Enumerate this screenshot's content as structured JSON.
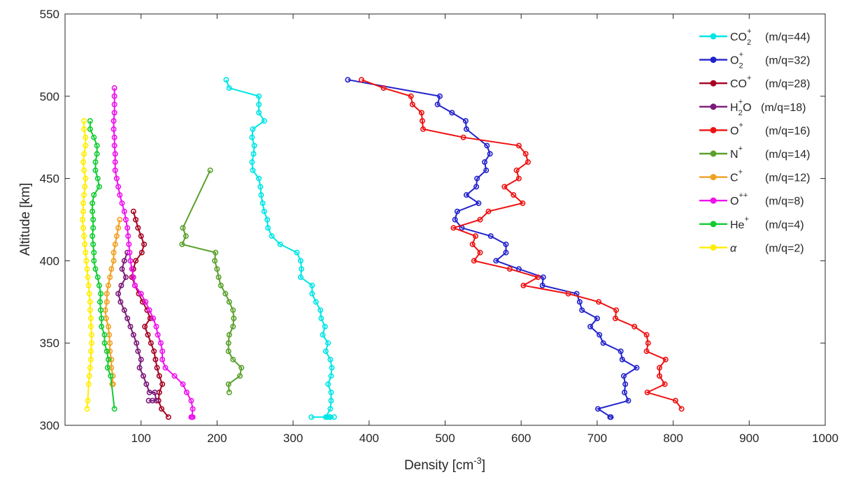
{
  "chart_data": {
    "type": "line",
    "xlabel": "Density [cm",
    "xlabel_sup": "-3",
    "xlabel_suffix": "]",
    "ylabel": "Altitude [km]",
    "xlim": [
      0,
      1000
    ],
    "ylim": [
      300,
      550
    ],
    "xticks": [
      100,
      200,
      300,
      400,
      500,
      600,
      700,
      800,
      900,
      1000
    ],
    "yticks": [
      300,
      350,
      400,
      450,
      500,
      550
    ],
    "grid": false,
    "legend_position": "top-right",
    "series": [
      {
        "name": "CO2+",
        "label": {
          "base": "CO",
          "sub": "2",
          "sup": "+",
          "mq": "(m/q=44)"
        },
        "color": "#00e5e5",
        "x": [
          212,
          216,
          255,
          255,
          255,
          262,
          247,
          246,
          249,
          248,
          246,
          247,
          255,
          257,
          258,
          260,
          262,
          266,
          267,
          272,
          283,
          305,
          310,
          311,
          310,
          325,
          325,
          330,
          336,
          337,
          342,
          339,
          346,
          343,
          349,
          351,
          350,
          346,
          350,
          350,
          349,
          343,
          348,
          345,
          347,
          354,
          349,
          324
        ],
        "y": [
          510,
          505,
          500,
          495,
          490,
          485,
          480,
          475,
          470,
          465,
          460,
          455,
          450,
          445,
          440,
          435,
          430,
          425,
          420,
          415,
          410,
          405,
          400,
          395,
          390,
          385,
          380,
          375,
          370,
          365,
          360,
          355,
          350,
          345,
          340,
          335,
          330,
          325,
          320,
          315,
          310,
          305,
          305,
          305,
          305,
          305,
          305,
          305
        ]
      },
      {
        "name": "O2+",
        "label": {
          "base": "O",
          "sub": "2",
          "sup": "+",
          "mq": "(m/q=32)"
        },
        "color": "#2222cc",
        "x": [
          372,
          493,
          490,
          509,
          527,
          528,
          555,
          559,
          552,
          554,
          542,
          541,
          528,
          544,
          516,
          513,
          522,
          560,
          580,
          580,
          567,
          597,
          629,
          628,
          673,
          677,
          680,
          700,
          691,
          703,
          708,
          731,
          733,
          752,
          735,
          737,
          736,
          741,
          701,
          718,
          717
        ],
        "y": [
          510,
          500,
          495,
          490,
          485,
          480,
          470,
          465,
          460,
          455,
          450,
          445,
          440,
          435,
          430,
          425,
          420,
          415,
          410,
          405,
          400,
          395,
          390,
          385,
          380,
          375,
          370,
          365,
          360,
          355,
          350,
          345,
          340,
          335,
          330,
          325,
          320,
          315,
          310,
          305,
          305
        ]
      },
      {
        "name": "CO+",
        "label": {
          "base": "CO",
          "sub": "",
          "sup": "+",
          "mq": "(m/q=28)"
        },
        "color": "#a50021",
        "x": [
          90,
          93,
          96,
          100,
          104,
          101,
          93,
          90,
          88,
          92,
          97,
          102,
          108,
          112,
          105,
          109,
          113,
          117,
          119,
          121,
          124,
          128,
          124,
          123,
          127,
          136
        ],
        "y": [
          430,
          425,
          420,
          415,
          410,
          405,
          400,
          395,
          390,
          385,
          380,
          375,
          370,
          365,
          360,
          355,
          350,
          345,
          340,
          335,
          330,
          325,
          320,
          315,
          310,
          305
        ]
      },
      {
        "name": "H2O+",
        "label": {
          "base": "H",
          "sub": "2",
          "sup": "+",
          "mqbase": "O",
          "mq": "(m/q=18)"
        },
        "color": "#7a1b7a",
        "x": [
          82,
          78,
          75,
          80,
          74,
          70,
          73,
          78,
          82,
          86,
          90,
          94,
          96,
          100,
          98,
          103,
          107,
          111,
          118,
          120,
          115,
          110
        ],
        "y": [
          405,
          400,
          395,
          390,
          385,
          380,
          375,
          370,
          365,
          360,
          355,
          350,
          345,
          340,
          335,
          330,
          325,
          320,
          320,
          315,
          315,
          315
        ]
      },
      {
        "name": "O+",
        "label": {
          "base": "O",
          "sub": "",
          "sup": "+",
          "mq": "(m/q=16)"
        },
        "color": "#ee1111",
        "x": [
          390,
          419,
          455,
          457,
          469,
          470,
          471,
          524,
          597,
          606,
          609,
          594,
          597,
          578,
          590,
          602,
          557,
          546,
          511,
          540,
          536,
          546,
          538,
          585,
          622,
          603,
          662,
          702,
          725,
          724,
          749,
          765,
          767,
          765,
          790,
          782,
          782,
          789,
          766,
          803,
          811
        ],
        "y": [
          510,
          505,
          500,
          495,
          490,
          485,
          480,
          475,
          470,
          465,
          460,
          455,
          450,
          445,
          440,
          435,
          430,
          425,
          420,
          415,
          410,
          405,
          400,
          395,
          390,
          385,
          380,
          375,
          370,
          365,
          360,
          355,
          350,
          345,
          340,
          335,
          330,
          325,
          320,
          315,
          310
        ]
      },
      {
        "name": "N+",
        "label": {
          "base": "N",
          "sub": "",
          "sup": "+",
          "mq": "(m/q=14)"
        },
        "color": "#5aa02c",
        "x": [
          191,
          155,
          159,
          154,
          198,
          197,
          200,
          202,
          205,
          211,
          216,
          221,
          222,
          221,
          216,
          215,
          215,
          221,
          232,
          230,
          215,
          216
        ],
        "y": [
          455,
          420,
          415,
          410,
          405,
          400,
          395,
          390,
          385,
          380,
          375,
          370,
          365,
          360,
          355,
          350,
          345,
          340,
          335,
          330,
          325,
          320
        ]
      },
      {
        "name": "C+",
        "label": {
          "base": "C",
          "sub": "",
          "sup": "+",
          "mq": "(m/q=12)"
        },
        "color": "#f0a020",
        "x": [
          72,
          70,
          68,
          66,
          64,
          64,
          61,
          59,
          57,
          55,
          55,
          53,
          54,
          57,
          58,
          59,
          59,
          61,
          61,
          63,
          62,
          63,
          63,
          63
        ],
        "y": [
          425,
          420,
          415,
          410,
          405,
          400,
          395,
          390,
          385,
          380,
          375,
          370,
          365,
          360,
          355,
          350,
          345,
          340,
          335,
          330,
          325,
          325,
          325,
          325
        ]
      },
      {
        "name": "O++",
        "label": {
          "base": "O",
          "sub": "",
          "sup": "++",
          "mq": "(m/q=8)"
        },
        "color": "#ee11ee",
        "x": [
          65,
          65,
          65,
          65,
          64,
          64,
          65,
          65,
          66,
          66,
          66,
          68,
          70,
          72,
          75,
          78,
          80,
          82,
          83,
          84,
          85,
          86,
          88,
          90,
          92,
          100,
          106,
          111,
          116,
          120,
          122,
          126,
          128,
          128,
          132,
          144,
          155,
          160,
          166,
          168,
          167,
          166,
          168
        ],
        "y": [
          505,
          500,
          495,
          490,
          485,
          480,
          475,
          470,
          465,
          460,
          455,
          450,
          445,
          440,
          435,
          430,
          425,
          420,
          415,
          410,
          405,
          400,
          395,
          390,
          385,
          380,
          375,
          370,
          365,
          360,
          355,
          350,
          345,
          340,
          335,
          330,
          325,
          320,
          315,
          310,
          305,
          305,
          305
        ]
      },
      {
        "name": "He+",
        "label": {
          "base": "He",
          "sub": "",
          "sup": "+",
          "mq": "(m/q=4)"
        },
        "color": "#11cc33",
        "x": [
          33,
          33,
          38,
          42,
          42,
          40,
          40,
          43,
          45,
          38,
          36,
          36,
          37,
          37,
          36,
          37,
          38,
          38,
          40,
          43,
          45,
          47,
          46,
          47,
          48,
          48,
          52,
          52,
          55,
          57,
          56,
          60,
          65
        ],
        "y": [
          485,
          480,
          475,
          470,
          465,
          460,
          455,
          450,
          445,
          440,
          435,
          430,
          425,
          420,
          415,
          410,
          405,
          400,
          395,
          390,
          385,
          380,
          375,
          370,
          365,
          360,
          355,
          350,
          345,
          340,
          335,
          330,
          310
        ]
      },
      {
        "name": "α",
        "label": {
          "base": "α",
          "sub": "",
          "sup": "",
          "mq": "(m/q=2)",
          "italic": true
        },
        "color": "#ffee00",
        "x": [
          25,
          25,
          27,
          27,
          25,
          24,
          25,
          27,
          26,
          25,
          24,
          24,
          23,
          24,
          25,
          26,
          27,
          28,
          29,
          30,
          31,
          32,
          33,
          33,
          34,
          34,
          35,
          35,
          34,
          34,
          33,
          32,
          31,
          30,
          29
        ],
        "y": [
          485,
          480,
          475,
          470,
          465,
          460,
          455,
          450,
          445,
          440,
          435,
          430,
          425,
          420,
          415,
          410,
          405,
          400,
          395,
          390,
          385,
          380,
          375,
          370,
          365,
          360,
          355,
          350,
          345,
          340,
          335,
          330,
          325,
          315,
          310
        ]
      }
    ]
  }
}
